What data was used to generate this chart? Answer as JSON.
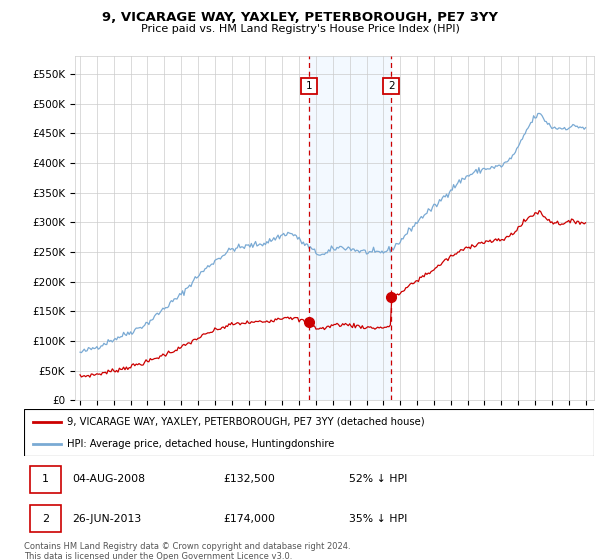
{
  "title": "9, VICARAGE WAY, YAXLEY, PETERBOROUGH, PE7 3YY",
  "subtitle": "Price paid vs. HM Land Registry's House Price Index (HPI)",
  "ylim": [
    0,
    580000
  ],
  "yticks": [
    0,
    50000,
    100000,
    150000,
    200000,
    250000,
    300000,
    350000,
    400000,
    450000,
    500000,
    550000
  ],
  "ytick_labels": [
    "£0",
    "£50K",
    "£100K",
    "£150K",
    "£200K",
    "£250K",
    "£300K",
    "£350K",
    "£400K",
    "£450K",
    "£500K",
    "£550K"
  ],
  "background_color": "#ffffff",
  "grid_color": "#cccccc",
  "hpi_color": "#7aaad4",
  "price_color": "#cc0000",
  "sale1_date": 2008.58,
  "sale1_price": 132500,
  "sale2_date": 2013.48,
  "sale2_price": 174000,
  "shade_color": "#ddeeff",
  "vline_color": "#cc0000",
  "marker_top_y": 530000,
  "legend_line1": "9, VICARAGE WAY, YAXLEY, PETERBOROUGH, PE7 3YY (detached house)",
  "legend_line2": "HPI: Average price, detached house, Huntingdonshire",
  "table_row1": [
    "1",
    "04-AUG-2008",
    "£132,500",
    "52% ↓ HPI"
  ],
  "table_row2": [
    "2",
    "26-JUN-2013",
    "£174,000",
    "35% ↓ HPI"
  ],
  "footnote": "Contains HM Land Registry data © Crown copyright and database right 2024.\nThis data is licensed under the Open Government Licence v3.0.",
  "xlim_left": 1994.7,
  "xlim_right": 2025.5
}
